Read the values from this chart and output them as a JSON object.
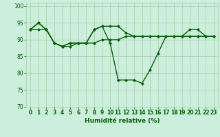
{
  "title": "",
  "xlabel": "Humidité relative (%)",
  "ylabel": "",
  "bg_color": "#cceedd",
  "grid_color": "#aaccaa",
  "line_color": "#006600",
  "marker": "D",
  "markersize": 2.0,
  "linewidth": 1.0,
  "xlim": [
    -0.5,
    23.5
  ],
  "ylim": [
    70,
    101
  ],
  "yticks": [
    70,
    75,
    80,
    85,
    90,
    95,
    100
  ],
  "xticks": [
    0,
    1,
    2,
    3,
    4,
    5,
    6,
    7,
    8,
    9,
    10,
    11,
    12,
    13,
    14,
    15,
    16,
    17,
    18,
    19,
    20,
    21,
    22,
    23
  ],
  "xlabel_fontsize": 6.5,
  "tick_fontsize": 5.5,
  "series": [
    [
      93,
      95,
      93,
      89,
      88,
      89,
      89,
      89,
      93,
      94,
      89,
      78,
      78,
      78,
      77,
      81,
      86,
      91,
      91,
      91,
      93,
      93,
      91,
      91
    ],
    [
      93,
      95,
      93,
      89,
      88,
      89,
      89,
      89,
      93,
      94,
      94,
      94,
      92,
      91,
      91,
      91,
      91,
      91,
      91,
      91,
      91,
      91,
      91,
      91
    ],
    [
      93,
      93,
      93,
      89,
      88,
      88,
      89,
      89,
      89,
      90,
      90,
      90,
      91,
      91,
      91,
      91,
      91,
      91,
      91,
      91,
      91,
      91,
      91,
      91
    ]
  ]
}
